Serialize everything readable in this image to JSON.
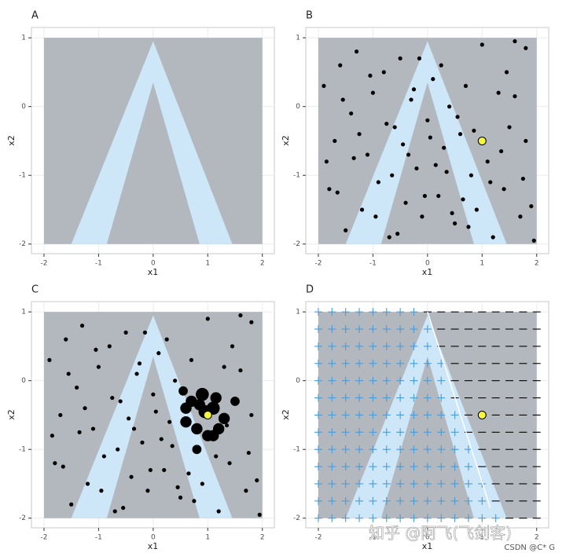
{
  "chart_data": [
    {
      "type": "scatter",
      "title": "A",
      "xlabel": "x1",
      "ylabel": "x2",
      "xlim": [
        -2.23,
        2.22
      ],
      "ylim": [
        -2.14,
        1.15
      ],
      "xticks": [
        -2,
        -1,
        0,
        1,
        2
      ],
      "yticks": [
        -2,
        -1,
        0,
        1
      ],
      "grid": true,
      "domain_x": [
        -2,
        2
      ],
      "domain_y": [
        -2,
        1
      ],
      "domain_color": "#b3b8bf",
      "region": {
        "x": [
          -1.5,
          0,
          1.45,
          0.85,
          0,
          -0.85
        ],
        "y": [
          -2,
          0.95,
          -2,
          -2,
          0.35,
          -2
        ],
        "color": "#cde6f8"
      }
    },
    {
      "type": "scatter",
      "title": "B",
      "xlabel": "x1",
      "ylabel": "x2",
      "xlim": [
        -2.23,
        2.22
      ],
      "ylim": [
        -2.14,
        1.15
      ],
      "xticks": [
        -2,
        -1,
        0,
        1,
        2
      ],
      "yticks": [
        -2,
        -1,
        0,
        1
      ],
      "grid": true,
      "domain_x": [
        -2,
        2
      ],
      "domain_y": [
        -2,
        1
      ],
      "domain_color": "#b3b8bf",
      "region": {
        "x": [
          -1.5,
          0,
          1.45,
          0.85,
          0,
          -0.85
        ],
        "y": [
          -2,
          0.95,
          -2,
          -2,
          0.35,
          -2
        ],
        "color": "#cde6f8"
      },
      "color": "#000000",
      "x": [
        -1.9,
        -1.8,
        -1.7,
        -1.6,
        -1.5,
        -1.4,
        -1.3,
        -1.2,
        -1.1,
        -1.0,
        -0.9,
        -0.8,
        -0.7,
        -0.6,
        -0.5,
        -0.4,
        -0.3,
        -0.2,
        -0.1,
        0.0,
        0.1,
        0.2,
        0.3,
        0.4,
        0.5,
        0.6,
        0.7,
        0.8,
        0.9,
        1.0,
        1.1,
        1.2,
        1.3,
        1.4,
        1.5,
        1.6,
        1.7,
        1.8,
        1.9,
        -1.85,
        -1.55,
        -1.25,
        -0.95,
        -0.65,
        -0.35,
        -0.05,
        0.25,
        0.55,
        0.85,
        1.15,
        1.45,
        1.75,
        -1.65,
        -1.05,
        -0.45,
        0.15,
        0.75,
        1.35,
        1.95,
        -0.25,
        0.35,
        -0.75,
        0.65,
        -0.15,
        0.05,
        0.45,
        -0.55,
        1.6,
        1.8,
        -1.35
      ],
      "y": [
        0.3,
        -1.2,
        -0.5,
        0.6,
        -1.8,
        -0.1,
        0.8,
        -1.5,
        -0.7,
        0.2,
        -1.1,
        0.5,
        -1.9,
        -0.3,
        0.7,
        -1.4,
        0.1,
        -0.9,
        -1.6,
        -0.2,
        0.4,
        -1.3,
        -0.6,
        0.0,
        -1.7,
        -0.4,
        0.3,
        -1.0,
        -1.5,
        0.9,
        -0.8,
        -1.9,
        0.2,
        -1.2,
        -0.3,
        0.95,
        -1.6,
        -0.5,
        -1.45,
        -0.8,
        0.1,
        -0.4,
        -1.6,
        -1.0,
        -0.7,
        -1.3,
        0.6,
        -0.15,
        -0.35,
        -1.1,
        0.5,
        -1.05,
        -1.25,
        0.45,
        -0.55,
        -0.85,
        -1.75,
        -0.65,
        -1.95,
        0.25,
        -0.95,
        -0.25,
        -1.35,
        0.7,
        -0.45,
        -1.55,
        -1.85,
        0.15,
        0.85,
        -0.75
      ],
      "highlight": {
        "x": 1,
        "y": -0.5,
        "color": "#f5f542"
      }
    },
    {
      "type": "scatter",
      "title": "C",
      "xlabel": "x1",
      "ylabel": "x2",
      "xlim": [
        -2.23,
        2.22
      ],
      "ylim": [
        -2.14,
        1.15
      ],
      "xticks": [
        -2,
        -1,
        0,
        1,
        2
      ],
      "yticks": [
        -2,
        -1,
        0,
        1
      ],
      "grid": true,
      "domain_x": [
        -2,
        2
      ],
      "domain_y": [
        -2,
        1
      ],
      "domain_color": "#b3b8bf",
      "region": {
        "x": [
          -1.5,
          0,
          1.45,
          0.85,
          0,
          -0.85
        ],
        "y": [
          -2,
          0.95,
          -2,
          -2,
          0.35,
          -2
        ],
        "color": "#cde6f8"
      },
      "color": "#000000",
      "x": [
        -1.9,
        -1.8,
        -1.7,
        -1.6,
        -1.5,
        -1.4,
        -1.3,
        -1.2,
        -1.1,
        -1.0,
        -0.9,
        -0.8,
        -0.7,
        -0.6,
        -0.5,
        -0.4,
        -0.3,
        -0.2,
        -0.1,
        0.0,
        0.1,
        0.2,
        0.3,
        0.4,
        0.5,
        0.6,
        0.7,
        0.8,
        0.9,
        1.0,
        1.1,
        1.2,
        1.3,
        1.4,
        1.5,
        1.6,
        1.7,
        1.8,
        1.9,
        -1.85,
        -1.55,
        -1.25,
        -0.95,
        -0.65,
        -0.35,
        -0.05,
        0.25,
        0.55,
        0.85,
        1.15,
        1.45,
        1.75,
        -1.65,
        -1.05,
        -0.45,
        0.15,
        0.75,
        1.35,
        1.95,
        -0.25,
        0.35,
        -0.75,
        0.65,
        -0.15,
        0.05,
        0.45,
        -0.55,
        1.6,
        1.8,
        -1.35,
        0.7,
        0.8,
        0.9,
        1.1,
        1.2,
        1.3,
        0.6,
        1.0,
        0.95,
        1.15
      ],
      "y": [
        0.3,
        -1.2,
        -0.5,
        0.6,
        -1.8,
        -0.1,
        0.8,
        -1.5,
        -0.7,
        0.2,
        -1.1,
        0.5,
        -1.9,
        -0.3,
        0.7,
        -1.4,
        0.1,
        -0.9,
        -1.6,
        -0.2,
        0.4,
        -1.3,
        -0.6,
        0.0,
        -1.7,
        -0.4,
        0.3,
        -1.0,
        -1.5,
        0.9,
        -0.8,
        -1.9,
        0.2,
        -1.2,
        -0.3,
        0.95,
        -1.6,
        -0.5,
        -1.45,
        -0.8,
        0.1,
        -0.4,
        -1.6,
        -1.0,
        -0.7,
        -1.3,
        0.6,
        -0.15,
        -0.35,
        -1.1,
        0.5,
        -1.05,
        -1.25,
        0.45,
        -0.55,
        -0.85,
        -1.75,
        -0.65,
        -1.95,
        0.25,
        -0.95,
        -0.25,
        -1.35,
        0.7,
        -0.45,
        -1.55,
        -1.85,
        0.15,
        0.85,
        -0.75,
        -0.3,
        -0.7,
        -0.2,
        -0.4,
        -0.7,
        -0.55,
        -0.6,
        -0.8,
        -0.45,
        -0.25
      ],
      "sizes": [
        1,
        1,
        1,
        1,
        1,
        1,
        1,
        1,
        1,
        1,
        1,
        1,
        1,
        1,
        1,
        1,
        1,
        1,
        1,
        1,
        1,
        1,
        1,
        1,
        1,
        3,
        1,
        2,
        1,
        1,
        3,
        1,
        1,
        1,
        2,
        1,
        1,
        1,
        1,
        1,
        1,
        1,
        1,
        1,
        1,
        1,
        1,
        2,
        3,
        1,
        1,
        1,
        1,
        1,
        1,
        1,
        1,
        1,
        1,
        1,
        1,
        1,
        1,
        1,
        1,
        1,
        1,
        1,
        1,
        1,
        3,
        3,
        4,
        4,
        3,
        3,
        3,
        3,
        4,
        3
      ],
      "highlight": {
        "x": 1,
        "y": -0.5,
        "color": "#f5f542"
      }
    },
    {
      "type": "scatter",
      "title": "D",
      "xlabel": "x1",
      "ylabel": "x2",
      "xlim": [
        -2.23,
        2.22
      ],
      "ylim": [
        -2.14,
        1.15
      ],
      "xticks": [
        -2,
        -1,
        0,
        1,
        2
      ],
      "yticks": [
        -2,
        -1,
        0,
        1
      ],
      "grid": true,
      "domain_x": [
        -2,
        2
      ],
      "domain_y": [
        -2,
        1
      ],
      "domain_color": "#b3b8bf",
      "region": {
        "x": [
          -1.5,
          0,
          1.45,
          0.85,
          0,
          -0.85
        ],
        "y": [
          -2,
          0.95,
          -2,
          -2,
          0.35,
          -2
        ],
        "color": "#cde6f8"
      },
      "boundary": {
        "x": [
          0,
          1.15
        ],
        "y": [
          1,
          -1.85
        ],
        "color": "#ffffff"
      },
      "grid_x": [
        -2,
        -1.75,
        -1.5,
        -1.25,
        -1,
        -0.75,
        -0.5,
        -0.25,
        0,
        0.25,
        0.5,
        0.75,
        1,
        1.25,
        1.5,
        1.75,
        2
      ],
      "grid_y": [
        1,
        0.75,
        0.5,
        0.25,
        0,
        -0.25,
        -0.5,
        -0.75,
        -1,
        -1.25,
        -1.5,
        -1.75,
        -2
      ],
      "plus_color": "#4a9ad6",
      "minus_color": "#000000",
      "signs": [
        [
          1,
          1,
          1,
          1,
          1,
          1,
          1,
          1,
          -1,
          -1,
          -1,
          -1,
          -1,
          -1,
          -1,
          -1,
          -1
        ],
        [
          1,
          1,
          1,
          1,
          1,
          1,
          1,
          1,
          1,
          -1,
          -1,
          -1,
          -1,
          -1,
          -1,
          -1,
          -1
        ],
        [
          1,
          1,
          1,
          1,
          1,
          1,
          1,
          1,
          1,
          -1,
          -1,
          -1,
          -1,
          -1,
          -1,
          -1,
          -1
        ],
        [
          1,
          1,
          1,
          1,
          1,
          1,
          1,
          1,
          1,
          1,
          -1,
          -1,
          -1,
          -1,
          -1,
          -1,
          -1
        ],
        [
          1,
          1,
          1,
          1,
          1,
          1,
          1,
          1,
          1,
          1,
          -1,
          -1,
          -1,
          -1,
          -1,
          -1,
          -1
        ],
        [
          1,
          1,
          1,
          1,
          1,
          1,
          1,
          1,
          1,
          1,
          -1,
          -1,
          -1,
          -1,
          -1,
          -1,
          -1
        ],
        [
          1,
          1,
          1,
          1,
          1,
          1,
          1,
          1,
          1,
          1,
          1,
          -1,
          -1,
          -1,
          -1,
          -1,
          -1
        ],
        [
          1,
          1,
          1,
          1,
          1,
          1,
          1,
          1,
          1,
          1,
          1,
          -1,
          -1,
          -1,
          -1,
          -1,
          -1
        ],
        [
          1,
          1,
          1,
          1,
          1,
          1,
          1,
          1,
          1,
          1,
          1,
          1,
          -1,
          -1,
          -1,
          -1,
          -1
        ],
        [
          1,
          1,
          1,
          1,
          1,
          1,
          1,
          1,
          1,
          1,
          1,
          1,
          -1,
          -1,
          -1,
          -1,
          -1
        ],
        [
          1,
          1,
          1,
          1,
          1,
          1,
          1,
          1,
          1,
          1,
          1,
          1,
          1,
          -1,
          -1,
          -1,
          -1
        ],
        [
          1,
          1,
          1,
          1,
          1,
          1,
          1,
          1,
          1,
          1,
          1,
          1,
          1,
          -1,
          -1,
          -1,
          -1
        ],
        [
          1,
          1,
          1,
          1,
          1,
          1,
          1,
          1,
          1,
          1,
          1,
          1,
          1,
          1,
          -1,
          -1,
          -1
        ]
      ],
      "highlight": {
        "x": 1,
        "y": -0.5,
        "color": "#f5f542"
      }
    }
  ],
  "watermark": {
    "text": "知乎 @阿飞(飞剑客)",
    "credit": "CSDN @C* G"
  }
}
